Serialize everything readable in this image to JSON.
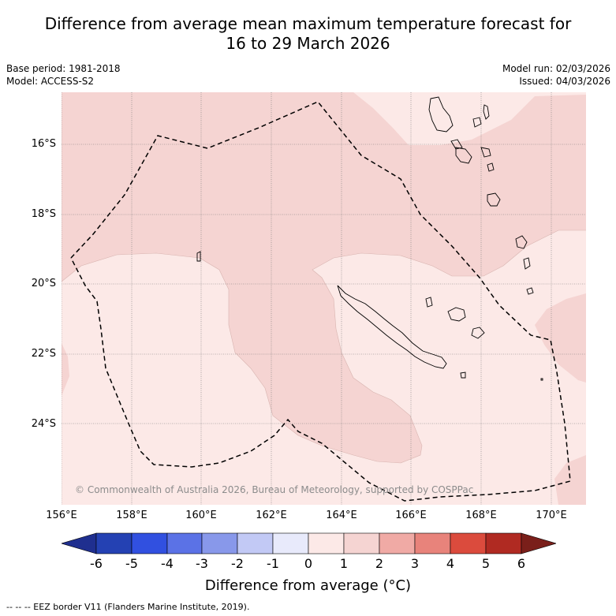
{
  "title_line1": "Difference from average mean maximum temperature forecast for",
  "title_line2": "16 to 29 March 2026",
  "base_period": "Base period: 1981-2018",
  "model": "Model: ACCESS-S2",
  "model_run": "Model run: 02/03/2026",
  "issued": "Issued: 04/03/2026",
  "lat_labels": [
    "16°S",
    "18°S",
    "20°S",
    "22°S",
    "24°S"
  ],
  "lon_labels": [
    "156°E",
    "158°E",
    "160°E",
    "162°E",
    "164°E",
    "166°E",
    "168°E",
    "170°E"
  ],
  "copyright": "© Commonwealth of Australia 2026, Bureau of Meteorology, supported by COSPPac",
  "colorbar": {
    "ticks": [
      "-6",
      "-5",
      "-4",
      "-3",
      "-2",
      "-1",
      "0",
      "1",
      "2",
      "3",
      "4",
      "5",
      "6"
    ],
    "colors": [
      "#1f2f8f",
      "#2441b3",
      "#3150e0",
      "#5b72e6",
      "#8898ea",
      "#c2c9f5",
      "#e8eafb",
      "#fce9e7",
      "#f5d4d2",
      "#f0aaa5",
      "#e8837b",
      "#db4b3d",
      "#b02a22",
      "#7a1f1a"
    ],
    "label": "Difference from average (°C)"
  },
  "fill_colors": {
    "light": "#fce9e7",
    "medium": "#f5d4d2"
  },
  "legend": "-- -- -- EEZ border V11 (Flanders Marine Institute, 2019)."
}
